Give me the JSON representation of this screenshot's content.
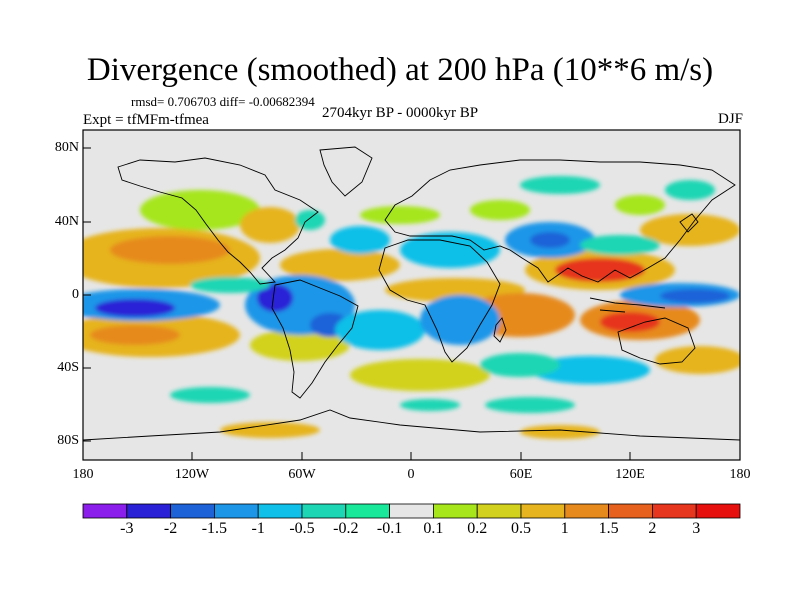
{
  "title": "Divergence (smoothed) at 200 hPa (10**6 m/s)",
  "stats": "rmsd= 0.706703 diff= -0.00682394",
  "experiment": "Expt = tfMFm-tfmea",
  "period": "2704kyr BP - 0000kyr BP",
  "season": "DJF",
  "axes": {
    "y_ticks": [
      "80N",
      "40N",
      "0",
      "40S",
      "80S"
    ],
    "x_ticks": [
      "180",
      "120W",
      "60W",
      "0",
      "60E",
      "120E",
      "180"
    ]
  },
  "colorbar": {
    "labels": [
      "-3",
      "-2",
      "-1.5",
      "-1",
      "-0.5",
      "-0.2",
      "-0.1",
      "0.1",
      "0.2",
      "0.5",
      "1",
      "1.5",
      "2",
      "3"
    ],
    "colors": [
      "#8c1eeb",
      "#2a20d6",
      "#1e62d8",
      "#1e96e8",
      "#11c0e8",
      "#1cd6b4",
      "#19e89b",
      "#e6e6e6",
      "#a6e61a",
      "#d2d21e",
      "#e6b41e",
      "#e68a1e",
      "#e6601e",
      "#e6361e",
      "#e6100e"
    ]
  }
}
